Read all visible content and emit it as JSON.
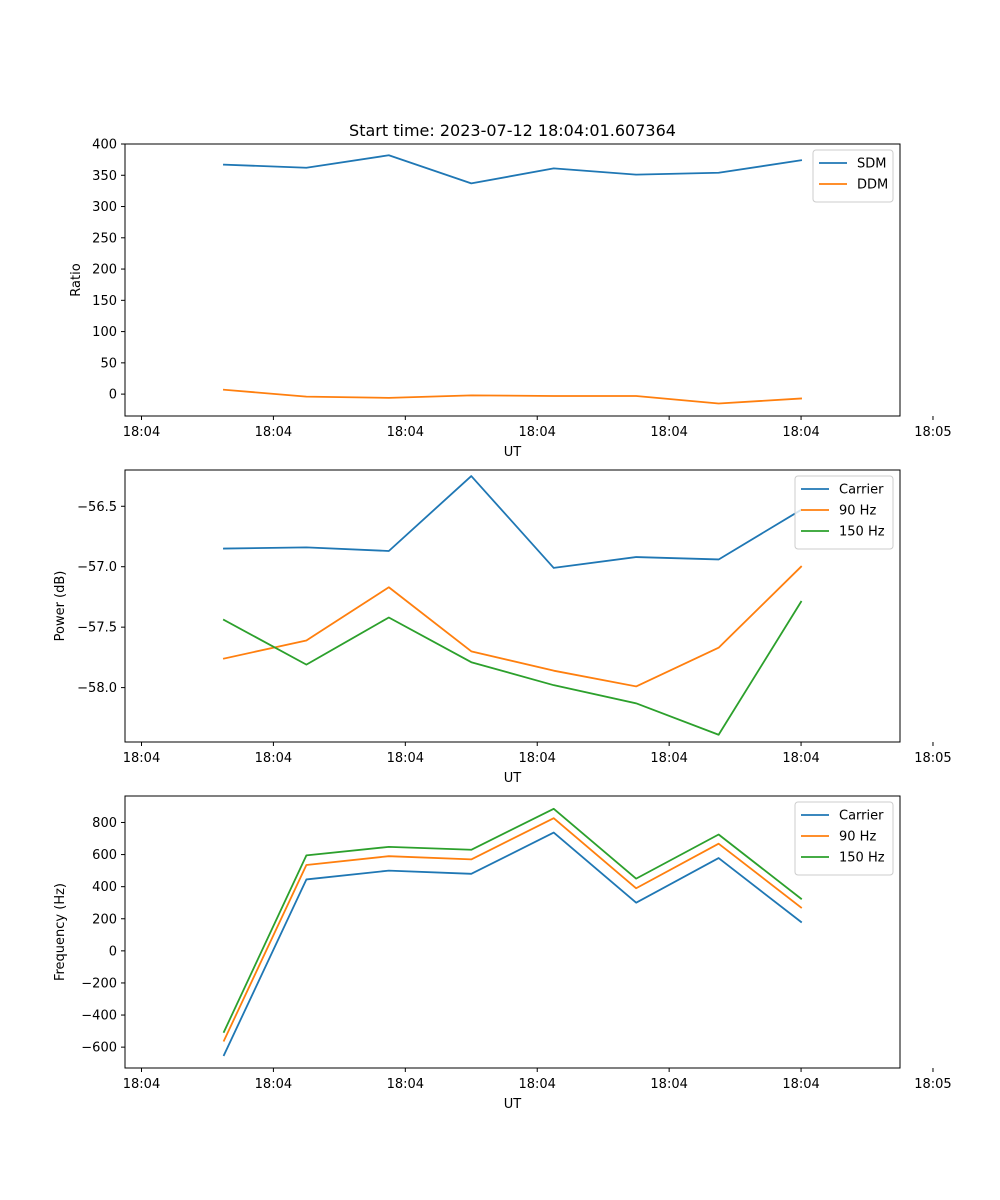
{
  "figure_title": "Start time: 2023-07-12 18:04:01.607364",
  "chart_data": [
    {
      "type": "line",
      "title": "Start time: 2023-07-12 18:04:01.607364",
      "xlabel": "UT",
      "ylabel": "Ratio",
      "x": [
        0.5,
        1.0,
        1.5,
        2.0,
        2.5,
        3.0,
        3.5,
        4.0
      ],
      "xlim": [
        -0.1,
        4.6
      ],
      "xticks": [
        0,
        0.8,
        1.6,
        2.4,
        3.2,
        4.0,
        4.8
      ],
      "xtick_labels": [
        "18:04",
        "18:04",
        "18:04",
        "18:04",
        "18:04",
        "18:04",
        "18:05"
      ],
      "ylim": [
        -35,
        400
      ],
      "yticks": [
        0,
        50,
        100,
        150,
        200,
        250,
        300,
        350,
        400
      ],
      "ytick_labels": [
        "0",
        "50",
        "100",
        "150",
        "200",
        "250",
        "300",
        "350",
        "400"
      ],
      "legend_position": "top-right",
      "series": [
        {
          "name": "SDM",
          "color": "#1f77b4",
          "values": [
            367,
            362,
            382,
            337,
            361,
            351,
            354,
            374
          ]
        },
        {
          "name": "DDM",
          "color": "#ff7f0e",
          "values": [
            7,
            -4,
            -6,
            -2,
            -3,
            -3,
            -15,
            -7
          ]
        }
      ]
    },
    {
      "type": "line",
      "title": "",
      "xlabel": "UT",
      "ylabel": "Power (dB)",
      "x": [
        0.5,
        1.0,
        1.5,
        2.0,
        2.5,
        3.0,
        3.5,
        4.0
      ],
      "xlim": [
        -0.1,
        4.6
      ],
      "xticks": [
        0,
        0.8,
        1.6,
        2.4,
        3.2,
        4.0,
        4.8
      ],
      "xtick_labels": [
        "18:04",
        "18:04",
        "18:04",
        "18:04",
        "18:04",
        "18:04",
        "18:05"
      ],
      "ylim": [
        -58.45,
        -56.2
      ],
      "yticks": [
        -58.0,
        -57.5,
        -57.0,
        -56.5
      ],
      "ytick_labels": [
        "−58.0",
        "−57.5",
        "−57.0",
        "−56.5"
      ],
      "legend_position": "top-right",
      "series": [
        {
          "name": "Carrier",
          "color": "#1f77b4",
          "values": [
            -56.85,
            -56.84,
            -56.87,
            -56.25,
            -57.01,
            -56.92,
            -56.94,
            -56.53
          ]
        },
        {
          "name": "90 Hz",
          "color": "#ff7f0e",
          "values": [
            -57.76,
            -57.61,
            -57.17,
            -57.7,
            -57.86,
            -57.99,
            -57.67,
            -57.0
          ]
        },
        {
          "name": "150 Hz",
          "color": "#2ca02c",
          "values": [
            -57.44,
            -57.81,
            -57.42,
            -57.79,
            -57.98,
            -58.13,
            -58.39,
            -57.29
          ]
        }
      ]
    },
    {
      "type": "line",
      "title": "",
      "xlabel": "UT",
      "ylabel": "Frequency (Hz)",
      "x": [
        0.5,
        1.0,
        1.5,
        2.0,
        2.5,
        3.0,
        3.5,
        4.0
      ],
      "xlim": [
        -0.1,
        4.6
      ],
      "xticks": [
        0,
        0.8,
        1.6,
        2.4,
        3.2,
        4.0,
        4.8
      ],
      "xtick_labels": [
        "18:04",
        "18:04",
        "18:04",
        "18:04",
        "18:04",
        "18:04",
        "18:05"
      ],
      "ylim": [
        -730,
        965
      ],
      "yticks": [
        -600,
        -400,
        -200,
        0,
        200,
        400,
        600,
        800
      ],
      "ytick_labels": [
        "−600",
        "−400",
        "−200",
        "0",
        "200",
        "400",
        "600",
        "800"
      ],
      "legend_position": "top-right",
      "series": [
        {
          "name": "Carrier",
          "color": "#1f77b4",
          "values": [
            -650,
            445,
            500,
            480,
            737,
            300,
            578,
            180
          ]
        },
        {
          "name": "90 Hz",
          "color": "#ff7f0e",
          "values": [
            -560,
            535,
            590,
            570,
            827,
            390,
            668,
            270
          ]
        },
        {
          "name": "150 Hz",
          "color": "#2ca02c",
          "values": [
            -505,
            595,
            648,
            630,
            885,
            450,
            725,
            325
          ]
        }
      ]
    }
  ]
}
